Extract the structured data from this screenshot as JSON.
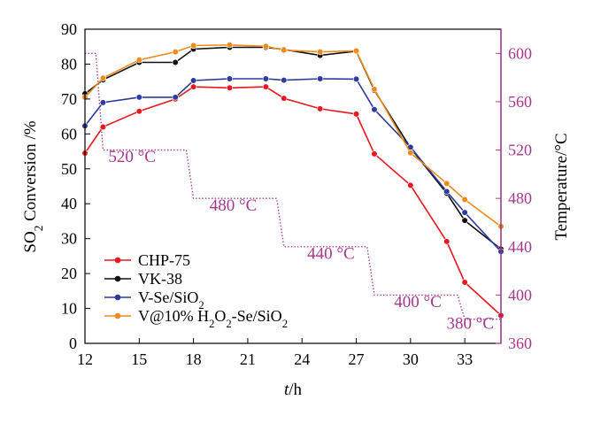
{
  "chart_data": {
    "type": "line",
    "xlabel": "t/h",
    "ylabel": "SO2 Conversion /%",
    "y2label": "Temperature/°C",
    "xlim": [
      12,
      35
    ],
    "ylim": [
      0,
      90
    ],
    "y2lim": [
      360,
      620
    ],
    "xticks": [
      12,
      15,
      18,
      21,
      24,
      27,
      30,
      33
    ],
    "yticks": [
      0,
      10,
      20,
      30,
      40,
      50,
      60,
      70,
      80,
      90
    ],
    "y2ticks": [
      360,
      400,
      440,
      480,
      520,
      560,
      600
    ],
    "grid": false,
    "legend_position": "bottom-left",
    "series": [
      {
        "name": "CHP-75",
        "color": "#e8191e",
        "x": [
          12,
          13,
          15,
          17,
          18,
          20,
          22,
          23,
          25,
          27,
          28,
          30,
          32,
          33,
          35
        ],
        "y": [
          54.5,
          62,
          66.5,
          70,
          73.5,
          73.2,
          73.5,
          70.2,
          67.2,
          65.7,
          54.3,
          45.3,
          29.2,
          17.5,
          8
        ]
      },
      {
        "name": "VK-38",
        "color": "#111111",
        "x": [
          12,
          13,
          15,
          17,
          18,
          20,
          22,
          23,
          25,
          27,
          28,
          30,
          32,
          33,
          35
        ],
        "y": [
          71.5,
          75.5,
          80.5,
          80.5,
          84.3,
          84.8,
          84.8,
          84.2,
          82.5,
          83.7,
          72.5,
          56,
          43,
          35.2,
          27
        ]
      },
      {
        "name": "V-Se/SiO2",
        "color": "#2e3a9e",
        "x": [
          12,
          13,
          15,
          17,
          18,
          20,
          22,
          23,
          25,
          27,
          28,
          30,
          32,
          33,
          35
        ],
        "y": [
          62.3,
          69,
          70.5,
          70.5,
          75.3,
          75.8,
          75.8,
          75.4,
          75.8,
          75.7,
          67,
          56.2,
          43.5,
          37.5,
          26.3
        ]
      },
      {
        "name": "V@10% H2O2-Se/SiO2",
        "color": "#ef8a1c",
        "x": [
          12,
          13,
          15,
          17,
          18,
          20,
          22,
          23,
          25,
          27,
          28,
          30,
          32,
          33,
          35
        ],
        "y": [
          70.5,
          76,
          81.2,
          83.5,
          85.3,
          85.5,
          85.1,
          84,
          83.5,
          83.8,
          72.8,
          54.6,
          45.8,
          41.2,
          33.5
        ]
      }
    ],
    "temperature_profile": {
      "color": "#a8368f",
      "x": [
        12,
        12.6,
        13,
        17,
        17.6,
        18,
        22,
        22.6,
        23,
        27,
        27.6,
        28,
        32,
        32.6,
        33,
        35
      ],
      "y": [
        600,
        600,
        520,
        520,
        520,
        480,
        480,
        480,
        440,
        440,
        440,
        400,
        400,
        400,
        380,
        380
      ]
    },
    "annotations": [
      {
        "text": "520 °C",
        "x": 14.6,
        "y2": 510
      },
      {
        "text": "480 °C",
        "x": 20.2,
        "y2": 470
      },
      {
        "text": "440 °C",
        "x": 25.6,
        "y2": 430
      },
      {
        "text": "400 °C",
        "x": 30.4,
        "y2": 390
      },
      {
        "text": "380 °C",
        "x": 33.3,
        "y2": 372
      }
    ]
  }
}
